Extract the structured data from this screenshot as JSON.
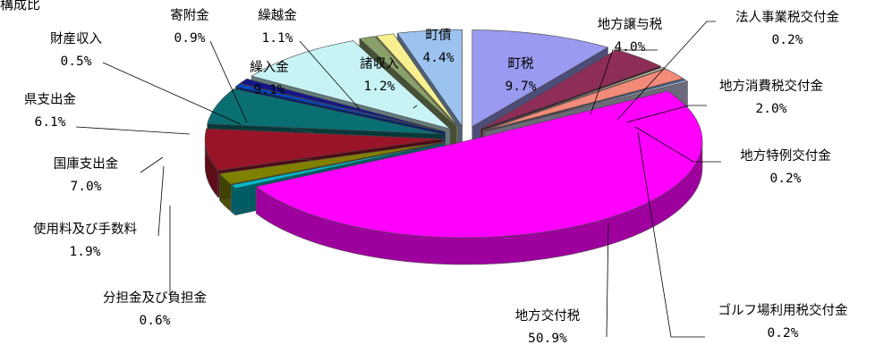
{
  "corner_text": "構成比",
  "chart_data": {
    "type": "pie",
    "title": "",
    "slices": [
      {
        "label": "町税",
        "value_text": "9.7%",
        "value": 9.7,
        "color": "#9a9af0"
      },
      {
        "label": "地方譲与税",
        "value_text": "4.0%",
        "value": 4.0,
        "color": "#8e2d57"
      },
      {
        "label": "法人事業税交付金",
        "value_text": "0.2%",
        "value": 0.2,
        "color": "#f4f0c6"
      },
      {
        "label": "地方消費税交付金",
        "value_text": "2.0%",
        "value": 2.0,
        "color": "#f38b7a"
      },
      {
        "label": "地方特例交付金",
        "value_text": "0.2%",
        "value": 0.2,
        "color": "#3e84c6"
      },
      {
        "label": "ゴルフ場利用税交付金",
        "value_text": "0.2%",
        "value": 0.2,
        "color": "#d8d3f4"
      },
      {
        "label": "地方交付税",
        "value_text": "50.9%",
        "value": 50.9,
        "color": "#ff00ff"
      },
      {
        "label": "分担金及び負担金",
        "value_text": "0.6%",
        "value": 0.6,
        "color": "#00b8c8"
      },
      {
        "label": "使用料及び手数料",
        "value_text": "1.9%",
        "value": 1.9,
        "color": "#808000"
      },
      {
        "label": "国庫支出金",
        "value_text": "7.0%",
        "value": 7.0,
        "color": "#9a1428"
      },
      {
        "label": "県支出金",
        "value_text": "6.1%",
        "value": 6.1,
        "color": "#0a6f73"
      },
      {
        "label": "財産収入",
        "value_text": "0.5%",
        "value": 0.5,
        "color": "#0044cc"
      },
      {
        "label": "寄附金",
        "value_text": "0.9%",
        "value": 0.9,
        "color": "#151589"
      },
      {
        "label": "繰入金",
        "value_text": "9.1%",
        "value": 9.1,
        "color": "#c8f3f4"
      },
      {
        "label": "繰越金",
        "value_text": "1.1%",
        "value": 1.1,
        "color": "#8aa06a"
      },
      {
        "label": "諸収入",
        "value_text": "1.2%",
        "value": 1.2,
        "color": "#f8f090"
      },
      {
        "label": "町債",
        "value_text": "4.4%",
        "value": 4.4,
        "color": "#9cc2f0"
      }
    ]
  }
}
